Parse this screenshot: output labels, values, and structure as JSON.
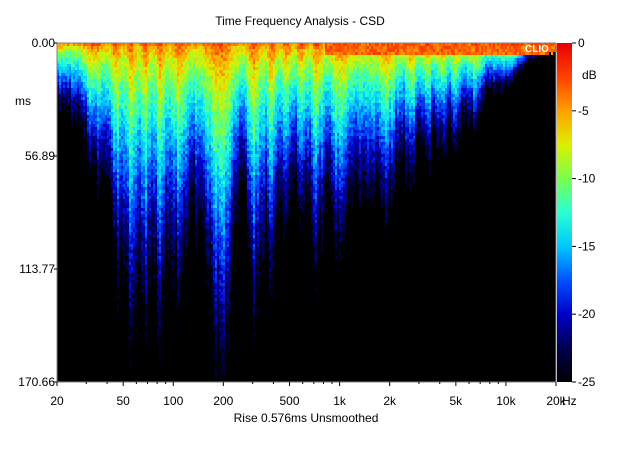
{
  "chart_data": {
    "type": "heatmap",
    "title": "Time Frequency Analysis - CSD",
    "subtitle": "Rise 0.576ms   Unsmoothed",
    "watermark": "CLIO",
    "x_axis": {
      "scale": "log",
      "range": [
        20,
        20000
      ],
      "ticks": [
        {
          "value": 20,
          "label": "20"
        },
        {
          "value": 50,
          "label": "50"
        },
        {
          "value": 100,
          "label": "100"
        },
        {
          "value": 200,
          "label": "200"
        },
        {
          "value": 500,
          "label": "500"
        },
        {
          "value": 1000,
          "label": "1k"
        },
        {
          "value": 2000,
          "label": "2k"
        },
        {
          "value": 5000,
          "label": "5k"
        },
        {
          "value": 10000,
          "label": "10k"
        },
        {
          "value": 20000,
          "label": "20k"
        }
      ],
      "unit": "Hz"
    },
    "y_axis": {
      "scale": "linear",
      "range": [
        0,
        170.66
      ],
      "inverted": true,
      "unit": "ms",
      "ticks": [
        {
          "value": 0,
          "label": "0.00"
        },
        {
          "value": 56.89,
          "label": "56.89"
        },
        {
          "value": 113.77,
          "label": "113.77"
        },
        {
          "value": 170.66,
          "label": "170.66"
        }
      ]
    },
    "colorbar": {
      "unit": "dB",
      "range": [
        -25,
        0
      ],
      "ticks": [
        {
          "value": 0,
          "label": "0"
        },
        {
          "value": -5,
          "label": "-5"
        },
        {
          "value": -10,
          "label": "-10"
        },
        {
          "value": -15,
          "label": "-15"
        },
        {
          "value": -20,
          "label": "-20"
        },
        {
          "value": -25,
          "label": "-25"
        }
      ],
      "colors": [
        "#000000",
        "#000050",
        "#0000c8",
        "#0050ff",
        "#00c8ff",
        "#28ffd2",
        "#78ff50",
        "#dcf000",
        "#ffa000",
        "#ff4000",
        "#e60000"
      ]
    },
    "decay_profile": {
      "frequency_hz": [
        20,
        30,
        40,
        50,
        60,
        70,
        80,
        100,
        130,
        160,
        200,
        250,
        300,
        400,
        500,
        700,
        1000,
        2000,
        3000,
        5000,
        8000,
        12000,
        16000,
        20000
      ],
      "decay_time_ms": [
        30,
        50,
        70,
        120,
        125,
        120,
        115,
        105,
        95,
        110,
        145,
        75,
        115,
        95,
        70,
        90,
        85,
        70,
        55,
        45,
        25,
        12,
        5,
        3
      ]
    },
    "grid": false
  }
}
